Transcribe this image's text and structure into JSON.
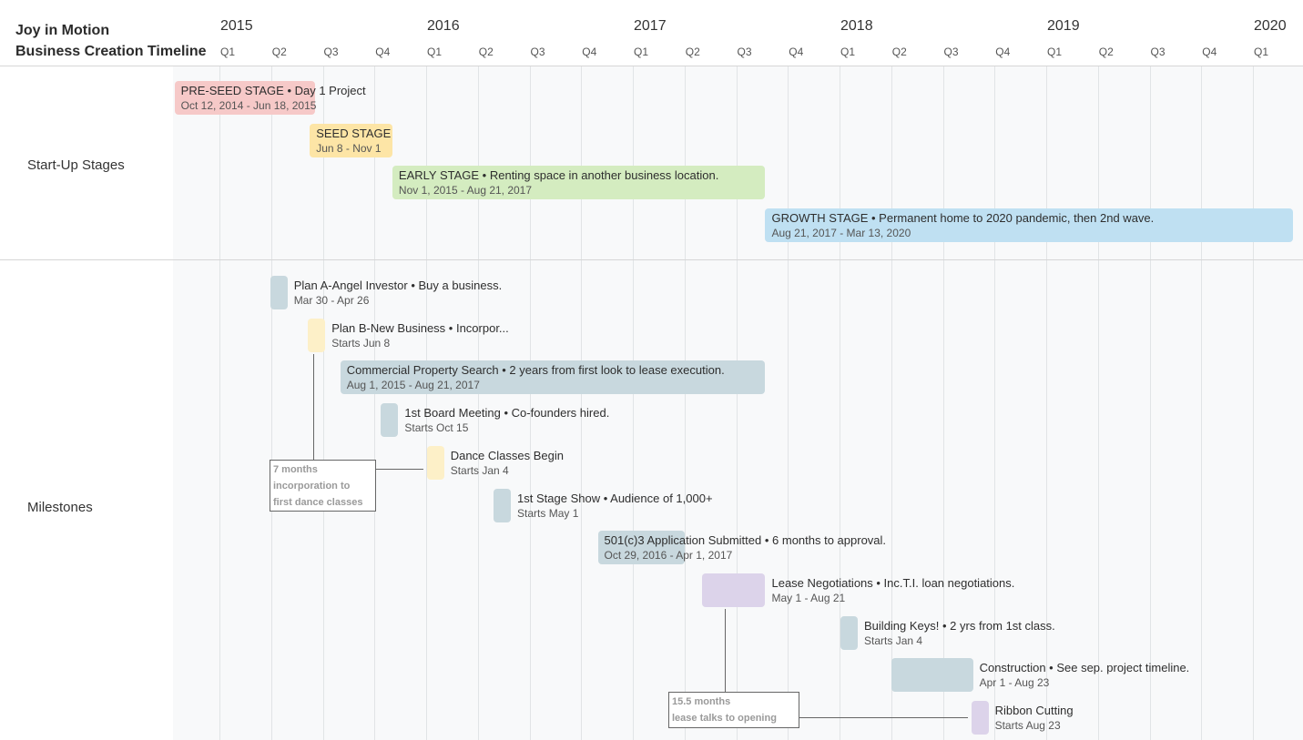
{
  "title_lines": [
    "Joy in Motion",
    "Business Creation Timeline"
  ],
  "chart_data": {
    "type": "timeline",
    "x_range": [
      "2015-01-01",
      "2020-01-01"
    ],
    "years": [
      "2015",
      "2016",
      "2017",
      "2018",
      "2019",
      "2020"
    ],
    "quarters": [
      "Q1",
      "Q2",
      "Q3",
      "Q4",
      "Q1",
      "Q2",
      "Q3",
      "Q4",
      "Q1",
      "Q2",
      "Q3",
      "Q4",
      "Q1",
      "Q2",
      "Q3",
      "Q4",
      "Q1",
      "Q2",
      "Q3",
      "Q4",
      "Q1"
    ],
    "groups": [
      {
        "name": "Start-Up Stages",
        "tasks": [
          {
            "title": "PRE-SEED STAGE • Day 1 Project",
            "dates": "Oct 12, 2014 - Jun 18, 2015",
            "start": "2014-10-12",
            "end": "2015-06-18",
            "color": "#f6c9c8"
          },
          {
            "title": "SEED STAGE",
            "dates": "Jun 8 - Nov 1",
            "start": "2015-06-08",
            "end": "2015-11-01",
            "color": "#fde5a6"
          },
          {
            "title": "EARLY STAGE • Renting space in another business location.",
            "dates": "Nov 1, 2015 - Aug 21, 2017",
            "start": "2015-11-01",
            "end": "2017-08-21",
            "color": "#d4ecc0"
          },
          {
            "title": "GROWTH STAGE  • Permanent home to 2020 pandemic, then 2nd wave.",
            "dates": "Aug 21, 2017 - Mar 13, 2020",
            "start": "2017-08-21",
            "end": "2020-03-13",
            "color": "#bfe0f2"
          }
        ]
      },
      {
        "name": "Milestones",
        "tasks": [
          {
            "title": "Plan A-Angel Investor • Buy a business.",
            "dates": "Mar 30 - Apr 26",
            "start": "2015-03-30",
            "end": "2015-04-26",
            "color": "#c8d8de"
          },
          {
            "title": "Plan B-New Business • Incorpor...",
            "dates": "Starts Jun 8",
            "start": "2015-06-08",
            "end": null,
            "color": "#fdf0c8"
          },
          {
            "title": "Commercial Property Search • 2 years from first look to lease execution.",
            "dates": "Aug 1, 2015 - Aug 21, 2017",
            "start": "2015-08-01",
            "end": "2017-08-21",
            "color": "#c8d8de"
          },
          {
            "title": "1st Board Meeting • Co-founders hired.",
            "dates": "Starts Oct 15",
            "start": "2015-10-15",
            "end": null,
            "color": "#c8d8de"
          },
          {
            "title": "Dance Classes Begin",
            "dates": "Starts Jan 4",
            "start": "2016-01-04",
            "end": null,
            "color": "#fdf0c8"
          },
          {
            "title": "1st Stage Show • Audience of 1,000+",
            "dates": "Starts May 1",
            "start": "2016-05-01",
            "end": null,
            "color": "#c8d8de"
          },
          {
            "title": "501(c)3 Application Submitted • 6 months to approval.",
            "dates": "Oct 29, 2016 - Apr 1, 2017",
            "start": "2016-10-29",
            "end": "2017-04-01",
            "color": "#c8d8de"
          },
          {
            "title": "Lease Negotiations • Inc.T.I. loan negotiations.",
            "dates": "May 1 - Aug 21",
            "start": "2017-05-01",
            "end": "2017-08-21",
            "color": "#dcd3ea"
          },
          {
            "title": "Building Keys! • 2 yrs from 1st class.",
            "dates": "Starts Jan 4",
            "start": "2018-01-04",
            "end": null,
            "color": "#c8d8de"
          },
          {
            "title": "Construction • See sep. project timeline.",
            "dates": "Apr 1 - Aug 23",
            "start": "2018-04-01",
            "end": "2018-08-23",
            "color": "#c8d8de"
          },
          {
            "title": "Ribbon Cutting",
            "dates": "Starts Aug 23",
            "start": "2018-08-23",
            "end": null,
            "color": "#dcd3ea"
          }
        ]
      }
    ],
    "annotations": [
      {
        "lines": [
          "7 months",
          "incorporation to",
          "first dance classes"
        ],
        "from_task": "Plan B-New Business • Incorpor...",
        "to_task": "Dance Classes Begin"
      },
      {
        "lines": [
          "15.5 months",
          "lease talks to opening"
        ],
        "from_task": "Lease Negotiations • Inc.T.I. loan negotiations.",
        "to_task": "Ribbon Cutting"
      }
    ]
  }
}
